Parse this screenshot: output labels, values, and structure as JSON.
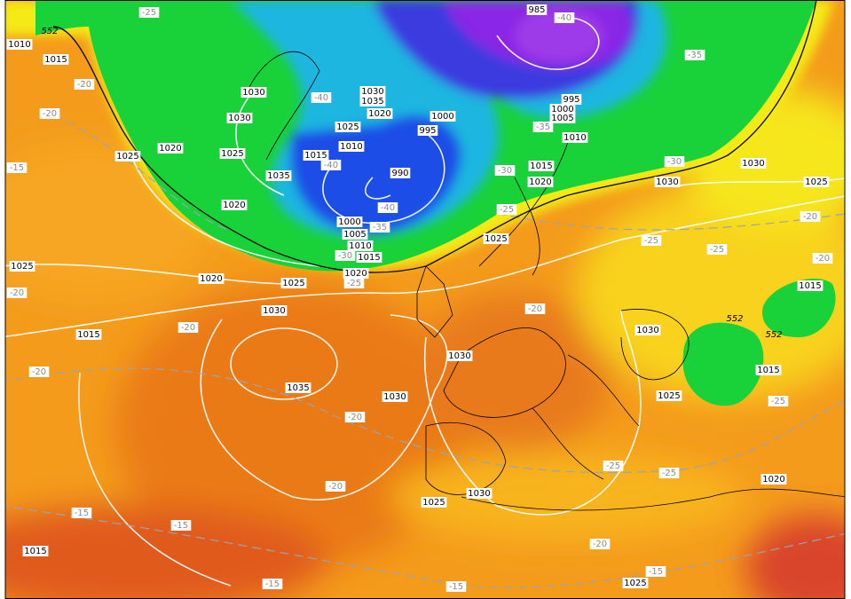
{
  "isobar_labels": [
    "1010",
    "1015",
    "1030",
    "1030",
    "1020",
    "1025",
    "1025",
    "1020",
    "1030",
    "1035",
    "1020",
    "1025",
    "1010",
    "1015",
    "1035",
    "995",
    "1000",
    "990",
    "1000",
    "1005",
    "1010",
    "1015",
    "1020",
    "1025",
    "985",
    "995",
    "1000",
    "1005",
    "1010",
    "1015",
    "1020",
    "1025",
    "1030",
    "1030",
    "1025",
    "1015",
    "1015",
    "1025",
    "1020",
    "1015",
    "1030",
    "1035",
    "1030",
    "1030",
    "1030",
    "1025",
    "1020",
    "1030",
    "1025",
    "1015",
    "1025"
  ],
  "temperature_labels": [
    "-25",
    "-20",
    "-20",
    "-15",
    "-20",
    "-20",
    "-20",
    "-20",
    "-20",
    "-15",
    "-15",
    "-15",
    "-15",
    "-15",
    "-20",
    "-25",
    "-25",
    "-25",
    "-25",
    "-25",
    "-20",
    "-20",
    "-20",
    "-25",
    "-30",
    "-35",
    "-30",
    "-35",
    "-40",
    "-40",
    "-35",
    "-30",
    "-25",
    "-40",
    "-40"
  ],
  "thickness_labels": [
    "552",
    "552",
    "552"
  ]
}
